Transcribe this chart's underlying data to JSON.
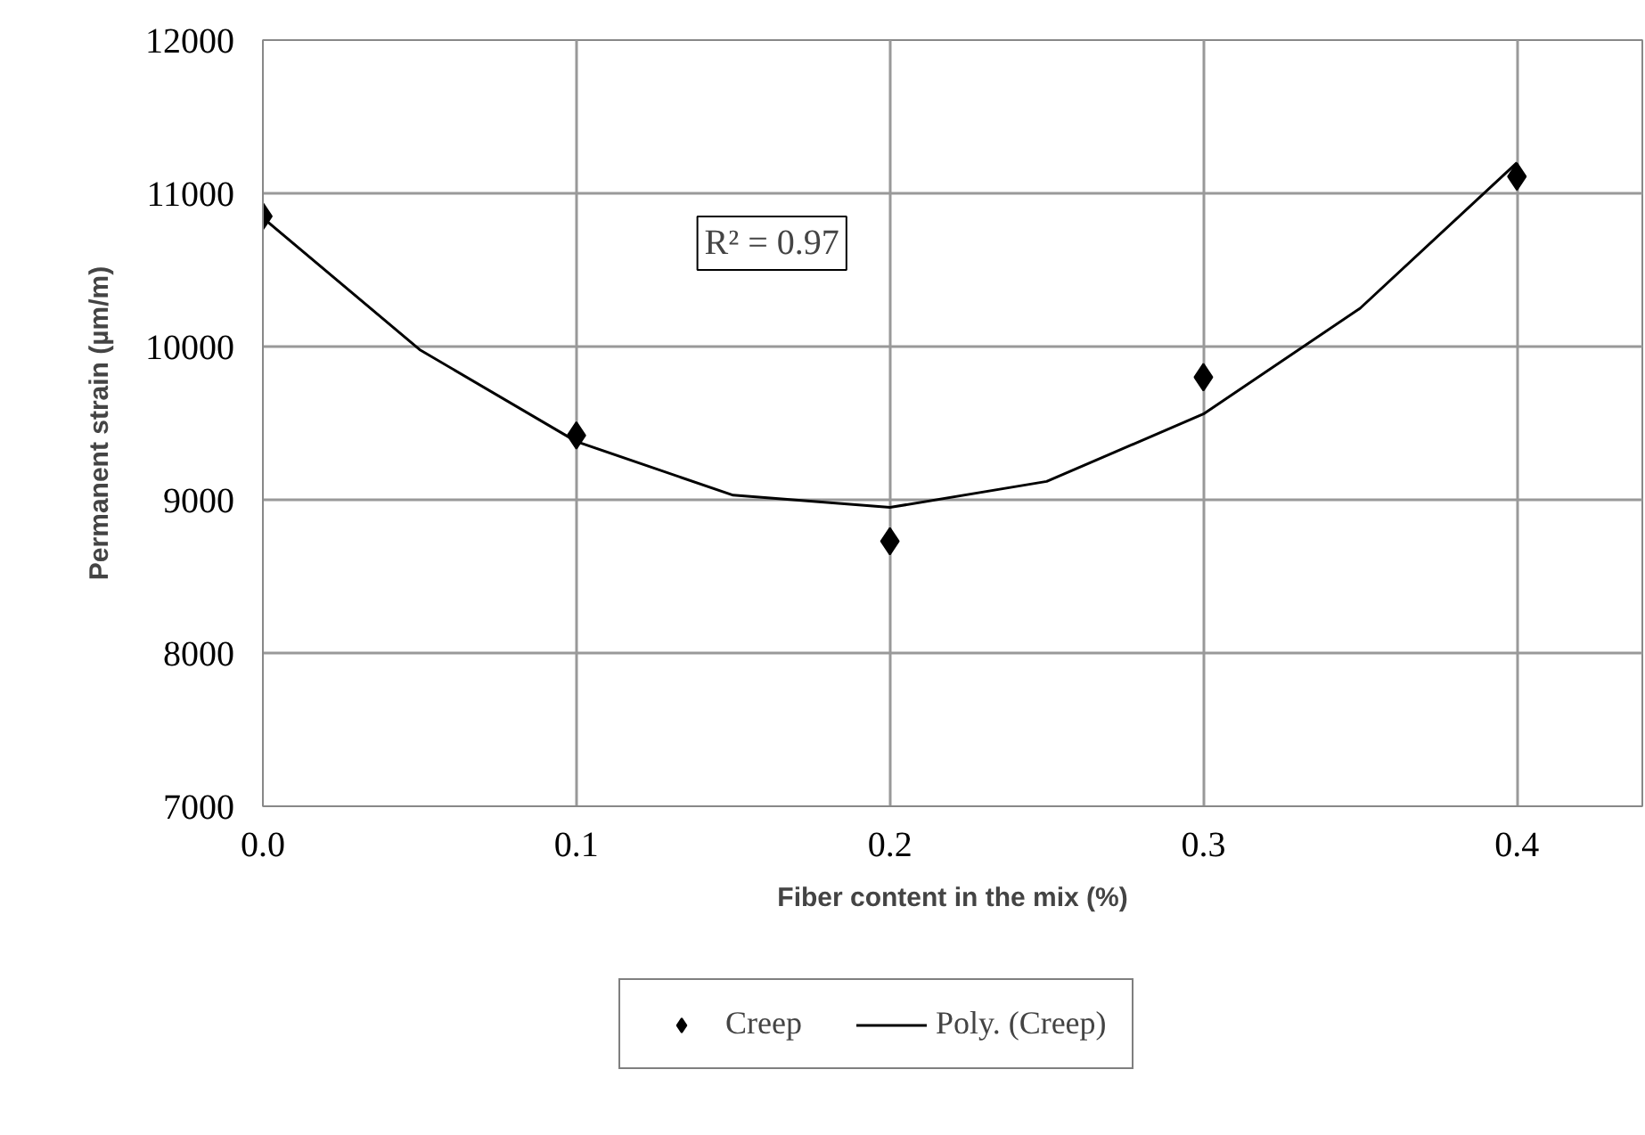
{
  "chart_data": {
    "type": "scatter",
    "xlabel": "Fiber content in the mix (%)",
    "ylabel": "Permanent strain (µm/m)",
    "x": [
      0.0,
      0.1,
      0.2,
      0.3,
      0.4
    ],
    "series": [
      {
        "name": "Creep",
        "color": "#000000",
        "type": "scatter",
        "marker": "diamond",
        "values": [
          10850,
          9420,
          8730,
          9800,
          11110
        ]
      },
      {
        "name": "Poly. (Creep)",
        "color": "#000000",
        "type": "line",
        "marker": "none",
        "x": [
          0.0,
          0.05,
          0.1,
          0.15,
          0.2,
          0.25,
          0.3,
          0.35,
          0.4
        ],
        "values": [
          10840,
          9980,
          9380,
          9030,
          8950,
          9120,
          9560,
          10250,
          11200
        ]
      }
    ],
    "xlim": [
      0,
      0.44
    ],
    "ylim": [
      7000,
      12000
    ],
    "xticks": [
      {
        "value": 0,
        "label": "0.0"
      },
      0.1,
      0.2,
      0.3,
      0.4
    ],
    "yticks": [
      7000,
      8000,
      9000,
      10000,
      11000,
      12000
    ],
    "grid": true,
    "legend": "bottom",
    "annotations": [
      "R² = 0.97"
    ]
  }
}
